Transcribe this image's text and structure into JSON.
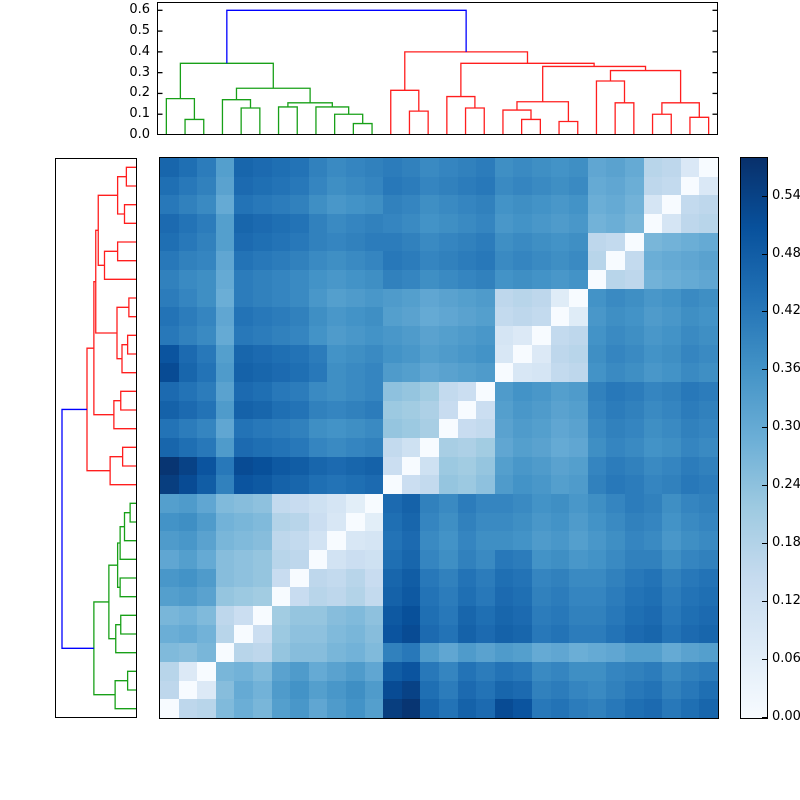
{
  "chart_data": {
    "type": "heatmap",
    "title": "",
    "description": "Hierarchically clustered pairwise distance matrix with top and left dendrograms and a Blues colorbar; rows are displayed in reverse of column order so the zero diagonal runs bottom-left to top-right.",
    "n_leaves": 30,
    "clusters": {
      "green_leaves": "0-11",
      "red_leaves": "12-29"
    },
    "dendrogram": {
      "colors": {
        "g": "#18a018",
        "r": "#ff1e1e",
        "b": "#0000ff"
      },
      "merges": [
        [
          1,
          2,
          0.075,
          "g"
        ],
        [
          0,
          30,
          0.175,
          "g"
        ],
        [
          4,
          5,
          0.13,
          "g"
        ],
        [
          3,
          32,
          0.17,
          "g"
        ],
        [
          6,
          7,
          0.135,
          "g"
        ],
        [
          10,
          11,
          0.055,
          "g"
        ],
        [
          9,
          35,
          0.1,
          "g"
        ],
        [
          8,
          36,
          0.135,
          "g"
        ],
        [
          34,
          37,
          0.155,
          "g"
        ],
        [
          33,
          38,
          0.225,
          "g"
        ],
        [
          31,
          39,
          0.345,
          "g"
        ],
        [
          13,
          14,
          0.115,
          "r"
        ],
        [
          12,
          41,
          0.215,
          "r"
        ],
        [
          16,
          17,
          0.13,
          "r"
        ],
        [
          15,
          43,
          0.185,
          "r"
        ],
        [
          19,
          20,
          0.075,
          "r"
        ],
        [
          18,
          45,
          0.12,
          "r"
        ],
        [
          21,
          22,
          0.065,
          "r"
        ],
        [
          46,
          47,
          0.16,
          "r"
        ],
        [
          24,
          25,
          0.155,
          "r"
        ],
        [
          23,
          49,
          0.26,
          "r"
        ],
        [
          26,
          27,
          0.1,
          "r"
        ],
        [
          28,
          29,
          0.085,
          "r"
        ],
        [
          51,
          52,
          0.155,
          "r"
        ],
        [
          50,
          53,
          0.31,
          "r"
        ],
        [
          48,
          54,
          0.33,
          "r"
        ],
        [
          44,
          55,
          0.345,
          "r"
        ],
        [
          42,
          56,
          0.4,
          "r"
        ],
        [
          40,
          57,
          0.6,
          "b"
        ]
      ]
    },
    "top_axis": {
      "max": 0.64,
      "ticks": [
        {
          "v": 0.0,
          "label": "0.0"
        },
        {
          "v": 0.1,
          "label": "0.1"
        },
        {
          "v": 0.2,
          "label": "0.2"
        },
        {
          "v": 0.3,
          "label": "0.3"
        },
        {
          "v": 0.4,
          "label": "0.4"
        },
        {
          "v": 0.5,
          "label": "0.5"
        },
        {
          "v": 0.6,
          "label": "0.6"
        }
      ]
    },
    "left_axis": {
      "max": 0.656,
      "ticks": []
    },
    "colorbar": {
      "max": 0.58,
      "ticks": [
        {
          "v": 0.0,
          "label": "0.00"
        },
        {
          "v": 0.06,
          "label": "0.06"
        },
        {
          "v": 0.12,
          "label": "0.12"
        },
        {
          "v": 0.18,
          "label": "0.18"
        },
        {
          "v": 0.24,
          "label": "0.24"
        },
        {
          "v": 0.3,
          "label": "0.30"
        },
        {
          "v": 0.36,
          "label": "0.36"
        },
        {
          "v": 0.42,
          "label": "0.42"
        },
        {
          "v": 0.48,
          "label": "0.48"
        },
        {
          "v": 0.54,
          "label": "0.54"
        }
      ]
    },
    "colormap": {
      "name": "Blues",
      "stops": [
        [
          0.0,
          [
            247,
            251,
            255
          ]
        ],
        [
          0.125,
          [
            222,
            235,
            247
          ]
        ],
        [
          0.25,
          [
            198,
            219,
            239
          ]
        ],
        [
          0.375,
          [
            158,
            202,
            225
          ]
        ],
        [
          0.5,
          [
            107,
            174,
            214
          ]
        ],
        [
          0.625,
          [
            66,
            146,
            198
          ]
        ],
        [
          0.75,
          [
            33,
            113,
            181
          ]
        ],
        [
          0.875,
          [
            8,
            81,
            156
          ]
        ],
        [
          1.0,
          [
            8,
            48,
            107
          ]
        ]
      ]
    },
    "heatmap": {
      "vmin": 0.0,
      "vmax": 0.58,
      "diagonal": 0.0,
      "row_display_order": "reversed",
      "upper_triangle": [
        [
          0.16,
          0.17,
          0.26,
          0.29,
          0.27,
          0.33,
          0.35,
          0.31,
          0.34,
          0.36,
          0.33,
          0.55,
          0.57,
          0.46,
          0.43,
          0.47,
          0.45,
          0.52,
          0.5,
          0.42,
          0.43,
          0.41,
          0.4,
          0.42,
          0.44,
          0.45,
          0.42,
          0.44,
          0.46
        ],
        [
          0.08,
          0.25,
          0.3,
          0.28,
          0.34,
          0.36,
          0.33,
          0.35,
          0.37,
          0.34,
          0.52,
          0.54,
          0.44,
          0.41,
          0.45,
          0.43,
          0.46,
          0.45,
          0.4,
          0.41,
          0.39,
          0.38,
          0.4,
          0.42,
          0.43,
          0.4,
          0.42,
          0.44
        ],
        [
          0.27,
          0.28,
          0.26,
          0.32,
          0.34,
          0.3,
          0.32,
          0.34,
          0.31,
          0.48,
          0.5,
          0.42,
          0.39,
          0.43,
          0.41,
          0.43,
          0.42,
          0.38,
          0.39,
          0.37,
          0.37,
          0.39,
          0.4,
          0.41,
          0.38,
          0.4,
          0.41
        ],
        [
          0.17,
          0.16,
          0.23,
          0.25,
          0.25,
          0.27,
          0.28,
          0.26,
          0.4,
          0.42,
          0.34,
          0.31,
          0.34,
          0.32,
          0.34,
          0.33,
          0.3,
          0.31,
          0.29,
          0.3,
          0.31,
          0.33,
          0.33,
          0.3,
          0.32,
          0.33
        ],
        [
          0.13,
          0.22,
          0.24,
          0.24,
          0.26,
          0.27,
          0.25,
          0.5,
          0.52,
          0.45,
          0.43,
          0.47,
          0.45,
          0.47,
          0.46,
          0.42,
          0.43,
          0.41,
          0.41,
          0.43,
          0.45,
          0.46,
          0.43,
          0.45,
          0.46
        ],
        [
          0.21,
          0.23,
          0.23,
          0.25,
          0.26,
          0.24,
          0.49,
          0.51,
          0.44,
          0.42,
          0.46,
          0.44,
          0.46,
          0.45,
          0.41,
          0.42,
          0.4,
          0.4,
          0.42,
          0.44,
          0.45,
          0.42,
          0.44,
          0.45
        ],
        [
          0.14,
          0.17,
          0.16,
          0.18,
          0.15,
          0.47,
          0.49,
          0.43,
          0.41,
          0.44,
          0.42,
          0.45,
          0.44,
          0.4,
          0.41,
          0.39,
          0.39,
          0.41,
          0.43,
          0.44,
          0.41,
          0.43,
          0.44
        ],
        [
          0.16,
          0.15,
          0.17,
          0.14,
          0.46,
          0.48,
          0.42,
          0.4,
          0.43,
          0.41,
          0.44,
          0.43,
          0.39,
          0.4,
          0.38,
          0.38,
          0.4,
          0.42,
          0.43,
          0.4,
          0.42,
          0.43
        ],
        [
          0.11,
          0.13,
          0.12,
          0.44,
          0.46,
          0.39,
          0.37,
          0.4,
          0.38,
          0.42,
          0.41,
          0.36,
          0.37,
          0.35,
          0.36,
          0.38,
          0.4,
          0.4,
          0.37,
          0.39,
          0.4
        ],
        [
          0.09,
          0.1,
          0.43,
          0.45,
          0.38,
          0.36,
          0.39,
          0.37,
          0.37,
          0.36,
          0.34,
          0.35,
          0.33,
          0.35,
          0.37,
          0.39,
          0.38,
          0.35,
          0.37,
          0.38
        ],
        [
          0.06,
          0.44,
          0.46,
          0.39,
          0.37,
          0.4,
          0.38,
          0.38,
          0.37,
          0.35,
          0.36,
          0.34,
          0.36,
          0.38,
          0.4,
          0.39,
          0.36,
          0.38,
          0.39
        ],
        [
          0.45,
          0.47,
          0.4,
          0.38,
          0.41,
          0.39,
          0.39,
          0.38,
          0.36,
          0.37,
          0.35,
          0.37,
          0.39,
          0.41,
          0.4,
          0.37,
          0.39,
          0.4
        ],
        [
          0.13,
          0.15,
          0.23,
          0.22,
          0.24,
          0.34,
          0.36,
          0.35,
          0.33,
          0.34,
          0.4,
          0.42,
          0.41,
          0.39,
          0.4,
          0.42,
          0.41
        ],
        [
          0.12,
          0.22,
          0.21,
          0.23,
          0.33,
          0.35,
          0.34,
          0.32,
          0.33,
          0.39,
          0.41,
          0.4,
          0.38,
          0.39,
          0.41,
          0.4
        ],
        [
          0.2,
          0.19,
          0.21,
          0.31,
          0.33,
          0.32,
          0.3,
          0.31,
          0.37,
          0.39,
          0.38,
          0.36,
          0.37,
          0.39,
          0.38
        ],
        [
          0.14,
          0.15,
          0.32,
          0.34,
          0.33,
          0.31,
          0.32,
          0.38,
          0.4,
          0.39,
          0.37,
          0.38,
          0.4,
          0.39
        ],
        [
          0.13,
          0.33,
          0.35,
          0.34,
          0.32,
          0.33,
          0.39,
          0.41,
          0.4,
          0.38,
          0.39,
          0.41,
          0.4
        ],
        [
          0.34,
          0.36,
          0.35,
          0.33,
          0.34,
          0.4,
          0.42,
          0.41,
          0.39,
          0.4,
          0.42,
          0.41
        ],
        [
          0.09,
          0.1,
          0.15,
          0.16,
          0.36,
          0.38,
          0.37,
          0.35,
          0.36,
          0.38,
          0.37
        ],
        [
          0.08,
          0.16,
          0.17,
          0.37,
          0.39,
          0.38,
          0.36,
          0.37,
          0.39,
          0.38
        ],
        [
          0.15,
          0.16,
          0.36,
          0.38,
          0.37,
          0.35,
          0.36,
          0.38,
          0.37
        ],
        [
          0.07,
          0.35,
          0.37,
          0.36,
          0.34,
          0.35,
          0.37,
          0.36
        ],
        [
          0.36,
          0.38,
          0.37,
          0.35,
          0.36,
          0.38,
          0.37
        ],
        [
          0.17,
          0.16,
          0.28,
          0.29,
          0.3,
          0.31
        ],
        [
          0.15,
          0.29,
          0.3,
          0.31,
          0.32
        ],
        [
          0.27,
          0.28,
          0.29,
          0.3
        ],
        [
          0.1,
          0.16,
          0.17
        ],
        [
          0.15,
          0.16
        ],
        [
          0.085
        ]
      ]
    }
  }
}
